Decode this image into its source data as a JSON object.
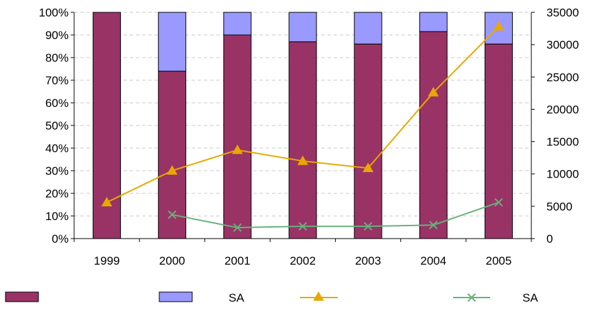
{
  "chart_data": {
    "type": "bar",
    "stacked_percent": true,
    "categories": [
      "1999",
      "2000",
      "2001",
      "2002",
      "2003",
      "2004",
      "2005"
    ],
    "left_axis": {
      "ylim": [
        0,
        100
      ],
      "ticks": [
        0,
        10,
        20,
        30,
        40,
        50,
        60,
        70,
        80,
        90,
        100
      ],
      "tick_suffix": "%"
    },
    "right_axis": {
      "ylim": [
        0,
        35000
      ],
      "ticks": [
        0,
        5000,
        10000,
        15000,
        20000,
        25000,
        30000,
        35000
      ]
    },
    "grid": true,
    "legend_position": "bottom",
    "bar_series": [
      {
        "name": "",
        "color": "#993366",
        "values": [
          100,
          74,
          90,
          87,
          86,
          91.5,
          86
        ]
      },
      {
        "name": "SA",
        "color": "#9999ff",
        "values": [
          0,
          26,
          10,
          13,
          14,
          8.5,
          14
        ]
      }
    ],
    "line_series": [
      {
        "name": "",
        "color": "#e8a800",
        "marker": "triangle",
        "axis": "right",
        "values": [
          5600,
          10500,
          13700,
          12000,
          10900,
          22600,
          32800
        ]
      },
      {
        "name": "SA",
        "color": "#66b27a",
        "marker": "x",
        "axis": "right",
        "values": [
          null,
          3700,
          1700,
          1900,
          1900,
          2100,
          5600
        ]
      }
    ]
  }
}
